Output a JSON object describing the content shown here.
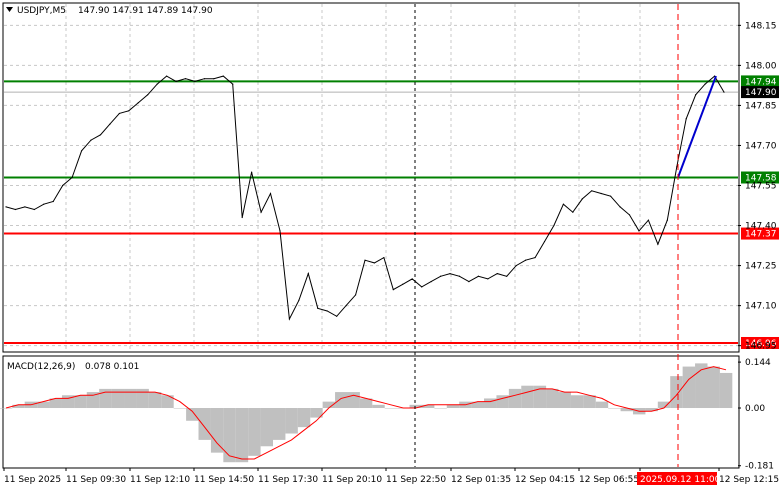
{
  "header": {
    "symbol": "USDJPY,M5",
    "ohlc": "147.90 147.91 147.89 147.90"
  },
  "macd_header": {
    "label": "MACD(12,26,9)",
    "values": "0.078 0.101"
  },
  "colors": {
    "background": "#ffffff",
    "price_line": "#000000",
    "grid": "#c8c8c8",
    "support_line": "#008000",
    "resistance_line": "#ff0000",
    "arrow": "#0000cd",
    "macd_hist": "#c0c0c0",
    "macd_signal": "#ff0000",
    "current_price_tag": "#000000",
    "time_marker": "#ff0000"
  },
  "chart_data": [
    {
      "type": "line",
      "title": "USDJPY,M5",
      "x_ticks": [
        "11 Sep 2025",
        "11 Sep 09:30",
        "11 Sep 12:10",
        "11 Sep 14:50",
        "11 Sep 17:30",
        "11 Sep 20:10",
        "11 Sep 22:50",
        "12 Sep 01:35",
        "12 Sep 04:15",
        "12 Sep 06:55",
        "2025.09.12 11:00",
        "12 Sep 12:15"
      ],
      "y_ticks": [
        148.15,
        148.0,
        147.85,
        147.7,
        147.55,
        147.4,
        147.25,
        147.1,
        146.95
      ],
      "ylim": [
        146.93,
        148.23
      ],
      "grid": true,
      "y_tick_labels": [
        "148.15",
        "148.00",
        "147.85",
        "147.70",
        "147.55",
        "147.40",
        "147.25",
        "147.10",
        "146.95"
      ],
      "series": [
        {
          "values": [
            147.47,
            147.46,
            147.47,
            147.46,
            147.48,
            147.49,
            147.55,
            147.58,
            147.68,
            147.72,
            147.74,
            147.78,
            147.82,
            147.83,
            147.86,
            147.89,
            147.93,
            147.96,
            147.94,
            147.95,
            147.94,
            147.95,
            147.95,
            147.96,
            147.93,
            147.43,
            147.6,
            147.45,
            147.52,
            147.38,
            147.05,
            147.12,
            147.22,
            147.09,
            147.08,
            147.06,
            147.1,
            147.14,
            147.27,
            147.26,
            147.28,
            147.16,
            147.18,
            147.2,
            147.17,
            147.19,
            147.21,
            147.22,
            147.21,
            147.19,
            147.21,
            147.2,
            147.22,
            147.21,
            147.25,
            147.27,
            147.28,
            147.34,
            147.4,
            147.48,
            147.45,
            147.5,
            147.53,
            147.52,
            147.51,
            147.47,
            147.44,
            147.38,
            147.42,
            147.33,
            147.42,
            147.62,
            147.8,
            147.89,
            147.93,
            147.96,
            147.9
          ]
        }
      ],
      "horizontal_levels": [
        {
          "value": 147.94,
          "label": "147.94",
          "color": "green"
        },
        {
          "value": 147.58,
          "label": "147.58",
          "color": "green"
        },
        {
          "value": 147.37,
          "label": "147.37",
          "color": "red"
        },
        {
          "value": 146.96,
          "label": "146.96",
          "color": "red"
        }
      ],
      "current_price": {
        "value": 147.9,
        "label": "147.90"
      },
      "vertical_marker": {
        "time": "2025.09.12 11:00",
        "style": "dashed",
        "color": "red"
      },
      "vertical_separators": [
        "11 Sep 22:50"
      ],
      "arrow": {
        "from": 147.58,
        "to": 147.96,
        "direction": "up"
      }
    },
    {
      "type": "bar",
      "title": "MACD(12,26,9)",
      "y_ticks": [
        0.144,
        0.0,
        -0.181
      ],
      "y_tick_labels": [
        "0.144",
        "0.00",
        "-0.181"
      ],
      "ylim": [
        -0.185,
        0.16
      ],
      "histogram": [
        0.0,
        0.01,
        0.02,
        0.02,
        0.03,
        0.04,
        0.04,
        0.05,
        0.06,
        0.06,
        0.06,
        0.06,
        0.05,
        0.04,
        0.0,
        -0.04,
        -0.1,
        -0.14,
        -0.17,
        -0.17,
        -0.15,
        -0.12,
        -0.1,
        -0.08,
        -0.06,
        -0.03,
        0.02,
        0.05,
        0.05,
        0.03,
        0.01,
        0.0,
        0.0,
        0.01,
        0.01,
        0.0,
        0.01,
        0.02,
        0.02,
        0.03,
        0.04,
        0.06,
        0.07,
        0.07,
        0.06,
        0.05,
        0.04,
        0.04,
        0.02,
        0.0,
        -0.01,
        -0.02,
        -0.01,
        0.02,
        0.1,
        0.13,
        0.14,
        0.13,
        0.11
      ],
      "signal": [
        0.0,
        0.01,
        0.01,
        0.02,
        0.03,
        0.03,
        0.04,
        0.04,
        0.05,
        0.05,
        0.05,
        0.05,
        0.05,
        0.04,
        0.02,
        -0.01,
        -0.06,
        -0.11,
        -0.15,
        -0.16,
        -0.16,
        -0.14,
        -0.12,
        -0.1,
        -0.07,
        -0.04,
        0.0,
        0.03,
        0.04,
        0.03,
        0.02,
        0.01,
        0.0,
        0.0,
        0.01,
        0.01,
        0.01,
        0.01,
        0.02,
        0.02,
        0.03,
        0.04,
        0.05,
        0.06,
        0.06,
        0.05,
        0.05,
        0.04,
        0.03,
        0.01,
        0.0,
        -0.01,
        -0.01,
        0.0,
        0.04,
        0.09,
        0.12,
        0.13,
        0.12
      ]
    }
  ]
}
